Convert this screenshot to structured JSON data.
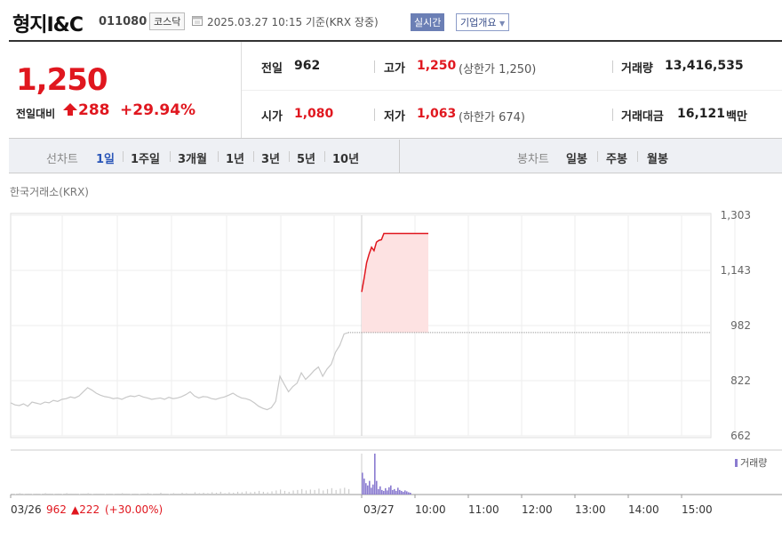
{
  "header": {
    "name": "형지I&C",
    "code": "011080",
    "market": "코스닥",
    "datetime": "2025.03.27 10:15  기준(KRX 장중)",
    "realtime": "실시간",
    "company_info": "기업개요"
  },
  "quote": {
    "price": "1,250",
    "change_label": "전일대비",
    "change": "288",
    "change_pct": "+29.94%",
    "prev_label": "전일",
    "prev": "962",
    "high_label": "고가",
    "high": "1,250",
    "upper_limit": "(상한가 1,250)",
    "volume_label": "거래량",
    "volume": "13,416,535",
    "open_label": "시가",
    "open": "1,080",
    "low_label": "저가",
    "low": "1,063",
    "lower_limit": "(하한가 674)",
    "value_label": "거래대금",
    "value": "16,121",
    "value_unit": "백만"
  },
  "tabs": {
    "line_label": "선차트",
    "periods": [
      "1일",
      "1주일",
      "3개월",
      "1년",
      "3년",
      "5년",
      "10년"
    ],
    "candle_label": "봉차트",
    "candles": [
      "일봉",
      "주봉",
      "월봉"
    ]
  },
  "colors": {
    "up": "#e0171f",
    "accent": "#2a56b8",
    "prev_line": "#c8c8c8",
    "volume": "#8a7bd0"
  },
  "chart_data": {
    "type": "line",
    "source": "한국거래소(KRX)",
    "yticks": [
      "1,303",
      "1,143",
      "982",
      "822",
      "662"
    ],
    "ylim": [
      662,
      1303
    ],
    "xticks": [
      "03/26",
      "03/27",
      "10:00",
      "11:00",
      "12:00",
      "13:00",
      "14:00",
      "15:00"
    ],
    "prev_day_footer": {
      "date": "03/26",
      "close": "962",
      "change": "▲222",
      "pct": "(+30.00%)"
    },
    "volume_label": "거래량",
    "reference_price": 962,
    "series": [
      {
        "day": "03/26",
        "values": [
          758,
          752,
          750,
          755,
          748,
          760,
          757,
          754,
          760,
          758,
          765,
          762,
          768,
          770,
          775,
          772,
          778,
          790,
          802,
          795,
          786,
          780,
          776,
          774,
          770,
          772,
          768,
          774,
          778,
          776,
          780,
          775,
          772,
          768,
          770,
          772,
          768,
          774,
          770,
          772,
          776,
          782,
          790,
          778,
          772,
          776,
          775,
          770,
          768,
          772,
          775,
          780,
          786,
          778,
          772,
          770,
          766,
          758,
          748,
          742,
          738,
          744,
          762,
          835,
          812,
          790,
          805,
          815,
          845,
          826,
          838,
          852,
          862,
          835,
          856,
          870,
          905,
          925,
          958,
          962
        ]
      },
      {
        "day": "03/27",
        "values": [
          1080,
          1120,
          1165,
          1190,
          1210,
          1200,
          1225,
          1230,
          1232,
          1250,
          1250,
          1250,
          1250,
          1250,
          1250,
          1250,
          1250,
          1250,
          1250,
          1250,
          1250,
          1250,
          1250,
          1250,
          1250,
          1250,
          1250,
          1250
        ]
      }
    ],
    "volume": {
      "03/26": [
        2,
        1,
        3,
        1,
        2,
        1,
        2,
        1,
        3,
        2,
        1,
        2,
        1,
        3,
        2,
        2,
        1,
        2,
        3,
        1,
        2,
        2,
        1,
        2,
        1,
        2,
        3,
        2,
        1,
        2,
        1,
        2,
        3,
        1,
        2,
        4,
        2,
        1,
        3,
        2,
        4,
        3,
        2,
        5,
        3,
        4,
        3,
        5,
        4,
        6,
        3,
        5,
        4,
        6,
        5,
        7,
        5,
        6,
        8,
        6,
        5,
        7,
        9,
        11,
        8,
        6,
        9,
        10,
        12,
        9,
        11,
        10,
        13,
        9,
        12,
        14,
        10,
        13,
        15,
        12
      ],
      "03/27": [
        48,
        35,
        25,
        20,
        30,
        15,
        22,
        90,
        30,
        12,
        18,
        10,
        8,
        14,
        9,
        16,
        20,
        10,
        12,
        8,
        15,
        10,
        8,
        6,
        9,
        7,
        5,
        4
      ]
    }
  }
}
